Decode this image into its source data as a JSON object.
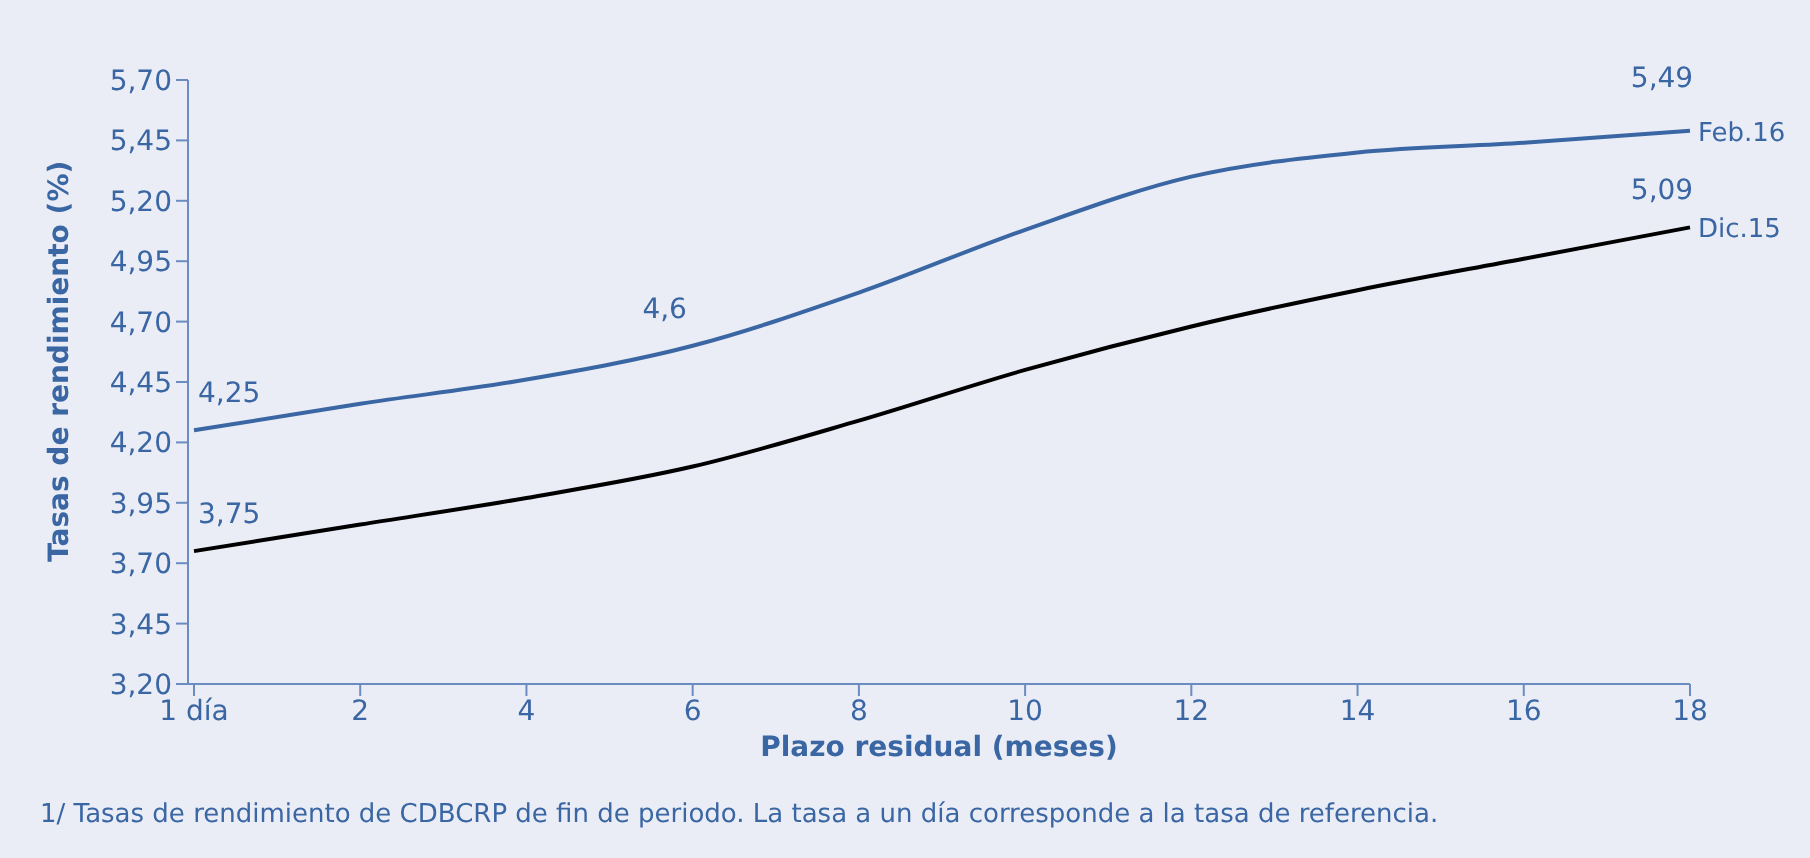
{
  "chart_data": {
    "type": "line",
    "xlabel": "Plazo residual (meses)",
    "ylabel": "Tasas de rendimiento (%)",
    "categories": [
      "1 día",
      "2",
      "4",
      "6",
      "8",
      "10",
      "12",
      "14",
      "16",
      "18"
    ],
    "series": [
      {
        "name": "Feb.16",
        "color": "#3a66a4",
        "values": [
          4.25,
          4.36,
          4.46,
          4.6,
          4.82,
          5.08,
          5.3,
          5.4,
          5.44,
          5.49
        ],
        "value_labels": [
          "4,25",
          null,
          null,
          "4,6",
          null,
          null,
          null,
          null,
          null,
          "5,49"
        ]
      },
      {
        "name": "Dic.15",
        "color": "#000000",
        "values": [
          3.75,
          3.86,
          3.97,
          4.1,
          4.29,
          4.5,
          4.68,
          4.83,
          4.96,
          5.09
        ],
        "value_labels": [
          "3,75",
          null,
          null,
          null,
          null,
          null,
          null,
          null,
          null,
          "5,09"
        ]
      }
    ],
    "ylim": [
      3.2,
      5.7
    ],
    "yticks": [
      {
        "value": 3.2,
        "label": "3,20"
      },
      {
        "value": 3.45,
        "label": "3,45"
      },
      {
        "value": 3.7,
        "label": "3,70"
      },
      {
        "value": 3.95,
        "label": "3,95"
      },
      {
        "value": 4.2,
        "label": "4,20"
      },
      {
        "value": 4.45,
        "label": "4,45"
      },
      {
        "value": 4.7,
        "label": "4,70"
      },
      {
        "value": 4.95,
        "label": "4,95"
      },
      {
        "value": 5.2,
        "label": "5,20"
      },
      {
        "value": 5.45,
        "label": "5,45"
      },
      {
        "value": 5.7,
        "label": "5,70"
      }
    ],
    "grid": false,
    "legend": false,
    "marker": "none",
    "line_style": "solid",
    "annotations": [
      "1/ Tasas de rendimiento de CDBCRP de fin de periodo. La tasa a un día corresponde a la tasa de referencia."
    ]
  }
}
